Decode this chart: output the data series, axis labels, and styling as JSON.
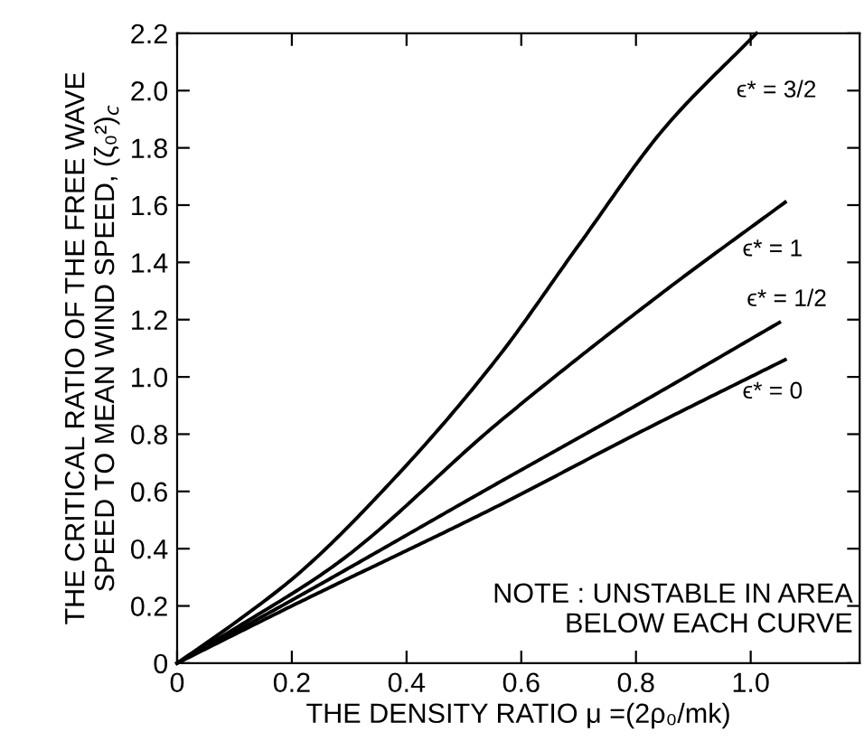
{
  "chart_data": {
    "type": "line",
    "xlabel": "THE DENSITY RATIO μ =(2ρ₀/mk)",
    "ylabel": "THE CRITICAL RATIO OF THE FREE WAVE\nSPEED TO MEAN WIND SPEED, (ζ₀²)$_{c}$",
    "xlim": [
      0,
      1.19
    ],
    "ylim": [
      0,
      2.2
    ],
    "xticks": [
      0,
      0.2,
      0.4,
      0.6,
      0.8,
      {
        "value": 1.0,
        "label": "1.0"
      }
    ],
    "yticks": [
      0,
      0.2,
      0.4,
      0.6,
      0.8,
      {
        "value": 1.0,
        "label": "1.0"
      },
      1.2,
      1.4,
      1.6,
      1.8,
      {
        "value": 2.0,
        "label": "2.0"
      },
      2.2
    ],
    "grid": false,
    "legend": "right",
    "marker": "none",
    "line_style": "solid",
    "series": [
      {
        "name": "ϵ* = 3/2",
        "color": "#000000",
        "x": [
          0,
          0.1,
          0.21,
          0.39,
          0.56,
          0.7,
          0.85,
          1.01
        ],
        "values": [
          0,
          0.14,
          0.31,
          0.67,
          1.07,
          1.46,
          1.87,
          2.2
        ]
      },
      {
        "name": "ϵ* = 1",
        "color": "#000000",
        "x": [
          0,
          0.1,
          0.28,
          0.56,
          0.85,
          1.06
        ],
        "values": [
          0,
          0.12,
          0.35,
          0.84,
          1.3,
          1.61
        ]
      },
      {
        "name": "ϵ* = 1/2",
        "color": "#000000",
        "x": [
          0,
          0.2,
          0.56,
          0.8,
          1.05
        ],
        "values": [
          0,
          0.22,
          0.63,
          0.9,
          1.19
        ]
      },
      {
        "name": "ϵ* = 0",
        "color": "#000000",
        "x": [
          0,
          0.2,
          0.56,
          0.8,
          1.06
        ],
        "values": [
          0,
          0.2,
          0.55,
          0.8,
          1.06
        ]
      }
    ],
    "annotations": [
      "NOTE : UNSTABLE IN AREA\nBELOW EACH CURVE"
    ]
  }
}
